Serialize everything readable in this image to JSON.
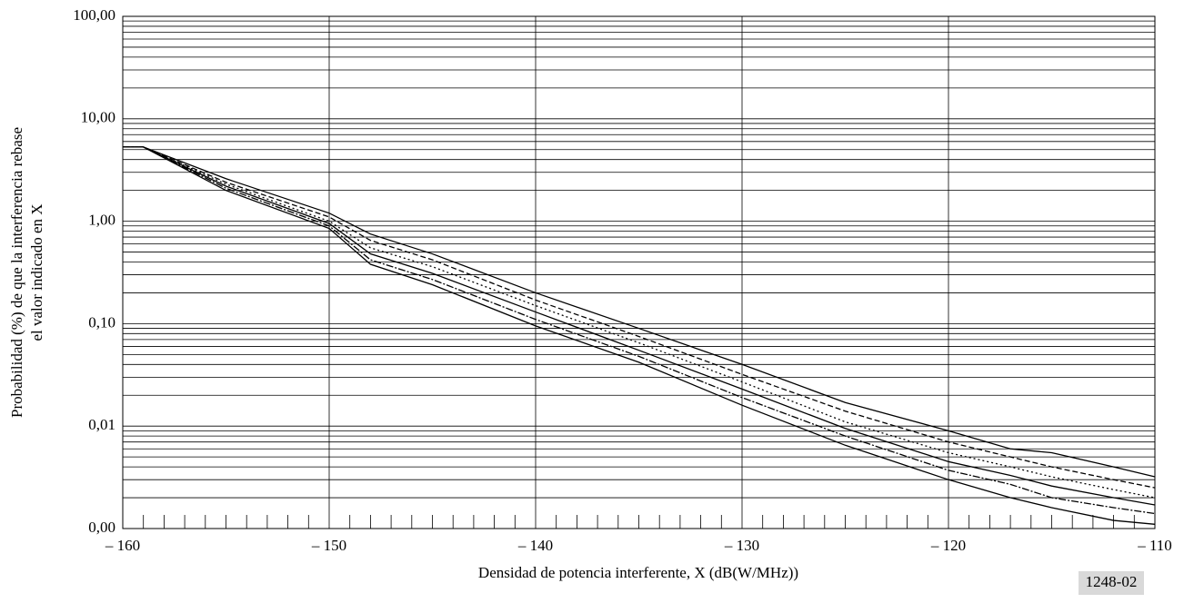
{
  "chart_data": {
    "type": "line",
    "xlabel": "Densidad de potencia interferente, X (dB(W/MHz))",
    "ylabel": [
      "Probabilidad (%) de que la interferencia rebase",
      "el valor indicado en X"
    ],
    "figure_id": "1248-02",
    "log_y": true,
    "grid": true,
    "color": "#000000",
    "xlim": [
      -160,
      -110
    ],
    "xticks": [
      {
        "value": -160,
        "label": "– 160"
      },
      {
        "value": -150,
        "label": "– 150"
      },
      {
        "value": -140,
        "label": "– 140"
      },
      {
        "value": -130,
        "label": "– 130"
      },
      {
        "value": -120,
        "label": "– 120"
      },
      {
        "value": -110,
        "label": "– 110"
      }
    ],
    "xminorticks": [
      -159,
      -158,
      -157,
      -156,
      -155,
      -154,
      -153,
      -152,
      -151,
      -149,
      -148,
      -147,
      -146,
      -145,
      -144,
      -143,
      -142,
      -141,
      -139,
      -138,
      -137,
      -136,
      -135,
      -134,
      -133,
      -132,
      -131,
      -129,
      -128,
      -127,
      -126,
      -125,
      -124,
      -123,
      -122,
      -121,
      -119,
      -118,
      -117,
      -116,
      -115,
      -114,
      -113,
      -112,
      -111
    ],
    "ylim": [
      0.001,
      100
    ],
    "yticks": [
      {
        "value": 0.001,
        "label": "0,00"
      },
      {
        "value": 0.01,
        "label": "0,01"
      },
      {
        "value": 0.1,
        "label": "0,10"
      },
      {
        "value": 1,
        "label": "1,00"
      },
      {
        "value": 10,
        "label": "10,00"
      },
      {
        "value": 100,
        "label": "100,00"
      }
    ],
    "yminorticks": [
      0.002,
      0.003,
      0.004,
      0.005,
      0.006,
      0.007,
      0.008,
      0.009,
      0.02,
      0.03,
      0.04,
      0.05,
      0.06,
      0.07,
      0.08,
      0.09,
      0.2,
      0.3,
      0.4,
      0.5,
      0.6,
      0.7,
      0.8,
      0.9,
      2,
      3,
      4,
      5,
      6,
      7,
      8,
      9,
      20,
      30,
      40,
      50,
      60,
      70,
      80,
      90
    ],
    "x": [
      -160,
      -159,
      -155,
      -150,
      -148,
      -145,
      -140,
      -135,
      -130,
      -125,
      -120,
      -117,
      -115,
      -112,
      -110
    ],
    "series": [
      {
        "color": "#000000",
        "dash": "none",
        "values": [
          5.3,
          5.3,
          2.6,
          1.2,
          0.75,
          0.48,
          0.2,
          0.09,
          0.04,
          0.017,
          0.009,
          0.006,
          0.0055,
          0.004,
          0.0032
        ]
      },
      {
        "color": "#000000",
        "dash": "6 3",
        "values": [
          5.3,
          5.3,
          2.4,
          1.1,
          0.65,
          0.42,
          0.17,
          0.075,
          0.032,
          0.014,
          0.007,
          0.005,
          0.004,
          0.003,
          0.0025
        ]
      },
      {
        "color": "#000000",
        "dash": "2 3",
        "values": [
          5.3,
          5.3,
          2.3,
          1.0,
          0.55,
          0.36,
          0.15,
          0.065,
          0.027,
          0.011,
          0.0055,
          0.004,
          0.0032,
          0.0024,
          0.002
        ]
      },
      {
        "color": "#000000",
        "dash": "none",
        "values": [
          5.3,
          5.3,
          2.2,
          0.95,
          0.48,
          0.31,
          0.13,
          0.055,
          0.023,
          0.0095,
          0.0045,
          0.0033,
          0.0026,
          0.002,
          0.0017
        ]
      },
      {
        "color": "#000000",
        "dash": "8 2 2 2",
        "values": [
          5.3,
          5.3,
          2.1,
          0.9,
          0.42,
          0.27,
          0.11,
          0.048,
          0.019,
          0.008,
          0.0037,
          0.0027,
          0.002,
          0.0016,
          0.0014
        ]
      },
      {
        "color": "#000000",
        "dash": "none",
        "values": [
          5.3,
          5.3,
          2.0,
          0.85,
          0.38,
          0.24,
          0.095,
          0.042,
          0.016,
          0.0065,
          0.003,
          0.002,
          0.0016,
          0.0012,
          0.0011
        ]
      }
    ]
  }
}
